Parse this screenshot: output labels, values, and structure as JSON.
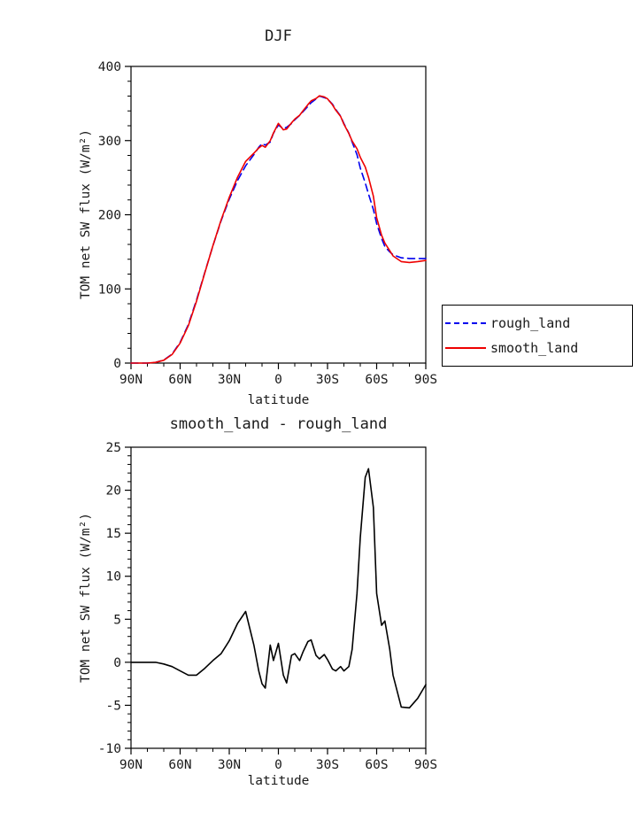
{
  "page": {
    "background": "#ffffff"
  },
  "legend": {
    "items": [
      {
        "label": "rough_land",
        "color": "#0000ee",
        "dash": true
      },
      {
        "label": "smooth_land",
        "color": "#ee0000",
        "dash": false
      }
    ]
  },
  "chart_data": [
    {
      "type": "line",
      "title": "DJF",
      "xlabel": "latitude",
      "ylabel": "TOM net SW flux (W/m²)",
      "ylim": [
        0,
        400
      ],
      "yticks": [
        0,
        100,
        200,
        300,
        400
      ],
      "yticklabels": [
        "0",
        "100",
        "200",
        "300",
        "400"
      ],
      "yminor": 20,
      "xticks": [
        90,
        60,
        30,
        0,
        -30,
        -60,
        -90
      ],
      "xticklabels": [
        "90N",
        "60N",
        "30N",
        "0",
        "30S",
        "60S",
        "90S"
      ],
      "xminor": 10,
      "grid": false,
      "legend_position": "outside-right",
      "x": [
        90,
        85,
        80,
        75,
        70,
        65,
        60,
        55,
        50,
        45,
        40,
        35,
        30,
        25,
        20,
        15,
        12,
        10,
        8,
        5,
        3,
        0,
        -3,
        -5,
        -8,
        -10,
        -13,
        -15,
        -18,
        -20,
        -23,
        -25,
        -28,
        -30,
        -33,
        -35,
        -38,
        -40,
        -43,
        -45,
        -48,
        -50,
        -53,
        -55,
        -58,
        -60,
        -63,
        -65,
        -68,
        -70,
        -75,
        -80,
        -85,
        -90
      ],
      "series": [
        {
          "name": "rough_land",
          "color": "#0000ee",
          "dash": [
            8,
            5
          ],
          "values": [
            0,
            0,
            0,
            1,
            4,
            12,
            28,
            52,
            85,
            122,
            158,
            192,
            221,
            246,
            266,
            281,
            291,
            296,
            294,
            298,
            310,
            321,
            316,
            318,
            323,
            328,
            334,
            339,
            346,
            351,
            356,
            360,
            358,
            356,
            349,
            342,
            333,
            323,
            310,
            298,
            281,
            263,
            243,
            228,
            207,
            188,
            168,
            157,
            150,
            146,
            142,
            141,
            141,
            141
          ]
        },
        {
          "name": "smooth_land",
          "color": "#ee0000",
          "dash": null,
          "values": [
            0,
            0,
            0,
            1,
            3.8,
            11.5,
            27,
            50.5,
            83.5,
            121.3,
            158.2,
            193,
            223.5,
            250.5,
            271.9,
            283,
            290,
            293.5,
            291,
            300,
            310.2,
            323.2,
            314.5,
            315.6,
            323.8,
            329,
            334.2,
            340.2,
            348.4,
            353.6,
            356.8,
            360.4,
            358.9,
            356.3,
            348.2,
            341,
            332.5,
            322,
            309.5,
            299.5,
            289,
            277.5,
            264.5,
            250.5,
            225,
            196,
            172.3,
            161.8,
            151.5,
            144.5,
            136.8,
            135.7,
            136.8,
            138.4
          ]
        }
      ]
    },
    {
      "type": "line",
      "title": "smooth_land - rough_land",
      "xlabel": "latitude",
      "ylabel": "TOM net SW flux (W/m²)",
      "ylim": [
        -10,
        25
      ],
      "yticks": [
        -10,
        -5,
        0,
        5,
        10,
        15,
        20,
        25
      ],
      "yticklabels": [
        "-10",
        "-5",
        "0",
        "5",
        "10",
        "15",
        "20",
        "25"
      ],
      "yminor": 1,
      "xticks": [
        90,
        60,
        30,
        0,
        -30,
        -60,
        -90
      ],
      "xticklabels": [
        "90N",
        "60N",
        "30N",
        "0",
        "30S",
        "60S",
        "90S"
      ],
      "xminor": 10,
      "grid": false,
      "legend_position": "none",
      "x": [
        90,
        85,
        80,
        75,
        70,
        65,
        60,
        55,
        50,
        45,
        40,
        35,
        30,
        25,
        20,
        15,
        12,
        10,
        8,
        5,
        3,
        0,
        -3,
        -5,
        -8,
        -10,
        -13,
        -15,
        -18,
        -20,
        -23,
        -25,
        -28,
        -30,
        -33,
        -35,
        -38,
        -40,
        -43,
        -45,
        -48,
        -50,
        -53,
        -55,
        -58,
        -60,
        -63,
        -65,
        -68,
        -70,
        -75,
        -80,
        -85,
        -90
      ],
      "series": [
        {
          "name": "smooth_land - rough_land",
          "color": "#000000",
          "dash": null,
          "values": [
            0,
            0,
            0,
            0,
            -0.2,
            -0.5,
            -1,
            -1.5,
            -1.5,
            -0.7,
            0.2,
            1,
            2.5,
            4.5,
            5.9,
            2,
            -1,
            -2.5,
            -3,
            2,
            0.2,
            2.2,
            -1.5,
            -2.4,
            0.8,
            1,
            0.2,
            1.2,
            2.4,
            2.6,
            0.8,
            0.4,
            0.9,
            0.3,
            -0.8,
            -1,
            -0.5,
            -1,
            -0.5,
            1.5,
            8,
            14.5,
            21.5,
            22.5,
            18,
            8,
            4.3,
            4.8,
            1.5,
            -1.5,
            -5.2,
            -5.3,
            -4.2,
            -2.6
          ]
        }
      ]
    }
  ]
}
